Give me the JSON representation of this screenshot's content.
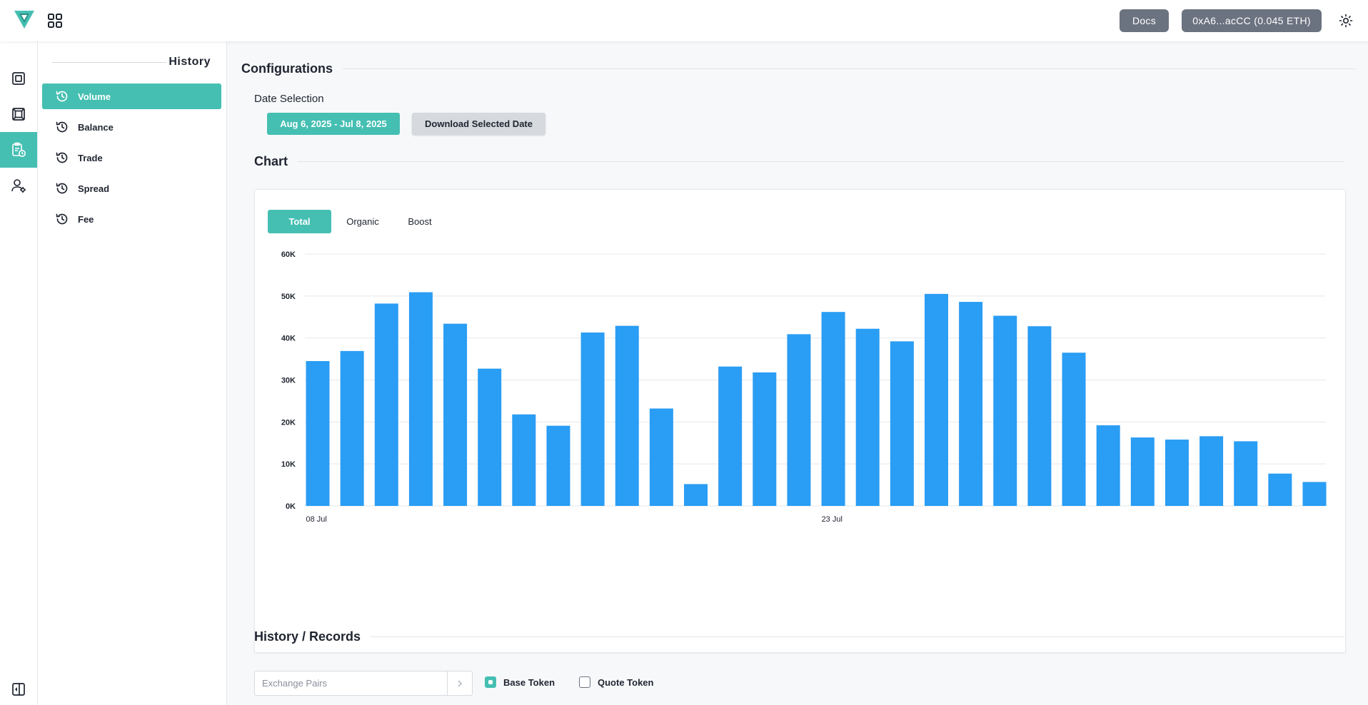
{
  "header": {
    "docs_label": "Docs",
    "wallet_label": "0xA6...acCC (0.045 ETH)",
    "brand_color": "#45bfb2"
  },
  "rail": {
    "items": [
      "dashboard-icon",
      "frame-icon",
      "clipboard-history-icon",
      "user-settings-icon"
    ],
    "active_index": 2
  },
  "sidebar": {
    "title": "History",
    "items": [
      {
        "label": "Volume",
        "icon": "history-icon",
        "active": true
      },
      {
        "label": "Balance",
        "icon": "history-icon",
        "active": false
      },
      {
        "label": "Trade",
        "icon": "history-icon",
        "active": false
      },
      {
        "label": "Spread",
        "icon": "history-icon",
        "active": false
      },
      {
        "label": "Fee",
        "icon": "history-icon",
        "active": false
      }
    ]
  },
  "config": {
    "title": "Configurations",
    "date_label": "Date Selection",
    "date_range": "Aug 6, 2025 - Jul 8, 2025",
    "download_label": "Download Selected Date"
  },
  "chart_section": {
    "title": "Chart",
    "tabs": [
      "Total",
      "Organic",
      "Boost"
    ],
    "active_tab": 0
  },
  "chart_data": {
    "type": "bar",
    "bar_color": "#2a9df4",
    "ylim": [
      0,
      60000
    ],
    "yticks": [
      "0K",
      "10K",
      "20K",
      "30K",
      "40K",
      "50K",
      "60K"
    ],
    "x_tick_labels": [
      {
        "index": 0,
        "label": "08 Jul"
      },
      {
        "index": 15,
        "label": "23 Jul"
      }
    ],
    "grid": true,
    "values": [
      34500,
      36900,
      48200,
      50900,
      43400,
      32700,
      21800,
      19100,
      41300,
      42900,
      23200,
      5200,
      33200,
      31800,
      40900,
      46200,
      42200,
      39200,
      50500,
      48600,
      45300,
      42800,
      36500,
      19200,
      16300,
      15800,
      16600,
      15400,
      7700,
      5700
    ]
  },
  "records": {
    "title": "History / Records",
    "search_placeholder": "Exchange Pairs",
    "base_token_label": "Base Token",
    "quote_token_label": "Quote Token",
    "base_checked": true,
    "quote_checked": false
  }
}
